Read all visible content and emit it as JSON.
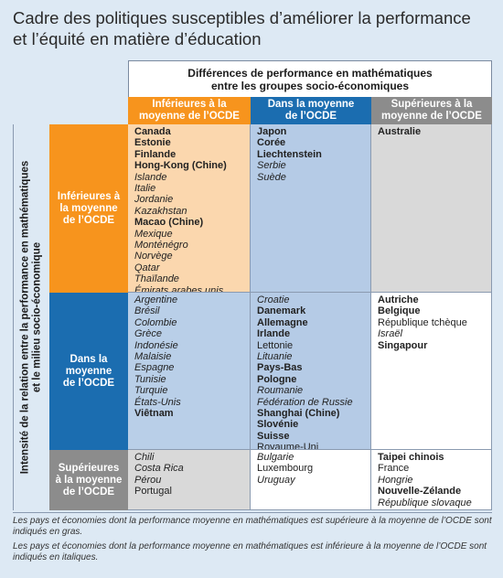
{
  "title_lines": [
    "Cadre des politiques susceptibles d’améliorer la performance",
    "et l’équité en matière d’éducation"
  ],
  "top_header": {
    "line1": "Différences de performance en mathématiques",
    "line2": "entre les groupes socio-économiques"
  },
  "col_headers": {
    "below": {
      "line1": "Inférieures à la",
      "line2": "moyenne de l’OCDE"
    },
    "average": {
      "line1": "Dans la moyenne",
      "line2": "de l’OCDE"
    },
    "above": {
      "line1": "Supérieures à la",
      "line2": "moyenne de l’OCDE"
    }
  },
  "side_label": {
    "line1": "Intensité de la relation entre la performance en mathématiques",
    "line2": "et le milieu socio-économique"
  },
  "row_headers": {
    "below": {
      "line1": "Inférieures à",
      "line2": "la moyenne",
      "line3": "de l’OCDE"
    },
    "average": {
      "line1": "Dans la",
      "line2": "moyenne",
      "line3": "de l’OCDE"
    },
    "above": {
      "line1": "Supérieures",
      "line2": "à la moyenne",
      "line3": "de l’OCDE"
    }
  },
  "cells": {
    "r1c1": [
      {
        "t": "Canada",
        "s": "bold"
      },
      {
        "t": "Estonie",
        "s": "bold"
      },
      {
        "t": "Finlande",
        "s": "bold"
      },
      {
        "t": "Hong-Kong (Chine)",
        "s": "bold"
      },
      {
        "t": "Islande",
        "s": "italic"
      },
      {
        "t": "Italie",
        "s": "italic"
      },
      {
        "t": "Jordanie",
        "s": "italic"
      },
      {
        "t": "Kazakhstan",
        "s": "italic"
      },
      {
        "t": "Macao (Chine)",
        "s": "bold"
      },
      {
        "t": "Mexique",
        "s": "italic"
      },
      {
        "t": "Monténégro",
        "s": "italic"
      },
      {
        "t": "Norvège",
        "s": "italic"
      },
      {
        "t": "Qatar",
        "s": "italic"
      },
      {
        "t": "Thaïlande",
        "s": "italic"
      },
      {
        "t": "Émirats arabes unis",
        "s": "italic"
      }
    ],
    "r1c2": [
      {
        "t": "Japon",
        "s": "bold"
      },
      {
        "t": "Corée",
        "s": "bold"
      },
      {
        "t": "Liechtenstein",
        "s": "bold"
      },
      {
        "t": "Serbie",
        "s": "italic"
      },
      {
        "t": "Suède",
        "s": "italic"
      }
    ],
    "r1c3": [
      {
        "t": "Australie",
        "s": "bold"
      }
    ],
    "r2c1": [
      {
        "t": "Argentine",
        "s": "italic"
      },
      {
        "t": "Brésil",
        "s": "italic"
      },
      {
        "t": "Colombie",
        "s": "italic"
      },
      {
        "t": "Grèce",
        "s": "italic"
      },
      {
        "t": "Indonésie",
        "s": "italic"
      },
      {
        "t": "Malaisie",
        "s": "italic"
      },
      {
        "t": "Espagne",
        "s": "italic"
      },
      {
        "t": "Tunisie",
        "s": "italic"
      },
      {
        "t": "Turquie",
        "s": "italic"
      },
      {
        "t": "États-Unis",
        "s": "italic"
      },
      {
        "t": "Viêtnam",
        "s": "bold"
      }
    ],
    "r2c2": [
      {
        "t": "Croatie",
        "s": "italic"
      },
      {
        "t": "Danemark",
        "s": "bold"
      },
      {
        "t": "Allemagne",
        "s": "bold"
      },
      {
        "t": "Irlande",
        "s": "bold"
      },
      {
        "t": "Lettonie",
        "s": "normal"
      },
      {
        "t": "Lituanie",
        "s": "italic"
      },
      {
        "t": "Pays-Bas",
        "s": "bold"
      },
      {
        "t": "Pologne",
        "s": "bold"
      },
      {
        "t": "Roumanie",
        "s": "italic"
      },
      {
        "t": "Fédération de Russie",
        "s": "italic"
      },
      {
        "t": "Shanghai (Chine)",
        "s": "bold"
      },
      {
        "t": "Slovénie",
        "s": "bold"
      },
      {
        "t": "Suisse",
        "s": "bold"
      },
      {
        "t": "Royaume-Uni",
        "s": "normal"
      }
    ],
    "r2c3": [
      {
        "t": "Autriche",
        "s": "bold"
      },
      {
        "t": "Belgique",
        "s": "bold"
      },
      {
        "t": "République tchèque",
        "s": "normal"
      },
      {
        "t": "Israël",
        "s": "italic"
      },
      {
        "t": "Singapour",
        "s": "bold"
      }
    ],
    "r3c1": [
      {
        "t": "Chili",
        "s": "italic"
      },
      {
        "t": "Costa Rica",
        "s": "italic"
      },
      {
        "t": "Pérou",
        "s": "italic"
      },
      {
        "t": "Portugal",
        "s": "normal"
      }
    ],
    "r3c2": [
      {
        "t": "Bulgarie",
        "s": "italic"
      },
      {
        "t": "Luxembourg",
        "s": "normal"
      },
      {
        "t": "Uruguay",
        "s": "italic"
      }
    ],
    "r3c3": [
      {
        "t": "Taipei chinois",
        "s": "bold"
      },
      {
        "t": "France",
        "s": "normal"
      },
      {
        "t": "Hongrie",
        "s": "italic"
      },
      {
        "t": "Nouvelle-Zélande",
        "s": "bold"
      },
      {
        "t": "République slovaque",
        "s": "italic"
      }
    ]
  },
  "notes": {
    "bold_note": "Les pays et économies dont la performance moyenne en mathématiques est supérieure à la moyenne de l’OCDE sont indiqués en gras.",
    "italic_note": "Les pays et économies dont la performance moyenne en mathématiques est inférieure à la moyenne de l’OCDE sont indiqués en italiques."
  },
  "colors": {
    "orange": "#f7941d",
    "blue": "#1b6db0",
    "grey": "#8c8c8c",
    "background": "#dde9f4"
  }
}
